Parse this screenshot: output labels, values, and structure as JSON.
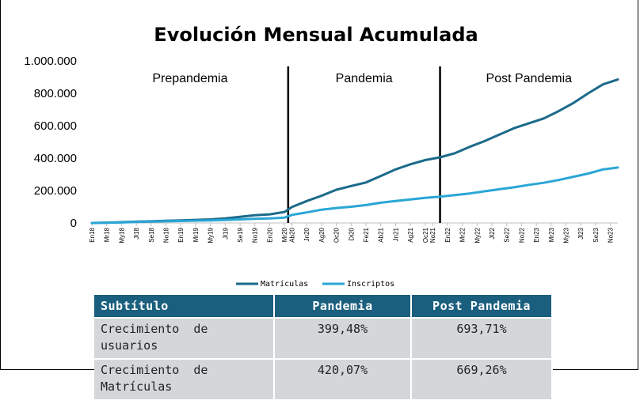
{
  "chart_data": {
    "type": "line",
    "title": "Evolución Mensual Acumulada",
    "xlabel": "",
    "ylabel": "",
    "ylim": [
      0,
      1000000
    ],
    "yticks": [
      "0",
      "200.000",
      "400.000",
      "600.000",
      "800.000",
      "1.000.000"
    ],
    "ytick_values": [
      0,
      200000,
      400000,
      600000,
      800000,
      1000000
    ],
    "x_tick_labels": [
      "En18",
      "Mr18",
      "My18",
      "Jl18",
      "Se18",
      "No18",
      "En19",
      "Mr19",
      "My19",
      "Jl19",
      "Se19",
      "No19",
      "En20",
      "Mr20",
      "Ab20",
      "Jn20",
      "Ag20",
      "Oc20",
      "Di20",
      "Fe21",
      "Ab21",
      "Jn21",
      "Ag21",
      "Oc21",
      "No21",
      "En22",
      "Mr22",
      "My22",
      "Jl22",
      "Se22",
      "No22",
      "En23",
      "Mr23",
      "My23",
      "Jl23",
      "Se23",
      "No23"
    ],
    "x_tick_months": [
      0,
      2,
      4,
      6,
      8,
      10,
      12,
      14,
      16,
      18,
      20,
      22,
      24,
      26,
      27,
      29,
      31,
      33,
      35,
      37,
      39,
      41,
      43,
      45,
      46,
      48,
      50,
      52,
      54,
      56,
      58,
      60,
      62,
      64,
      66,
      68,
      70
    ],
    "phases": [
      {
        "label": "Prepandemia",
        "start_month": 0,
        "end_month": 26.5
      },
      {
        "label": "Pandemia",
        "start_month": 26.5,
        "end_month": 47
      },
      {
        "label": "Post Pandemia",
        "start_month": 47,
        "end_month": 71
      }
    ],
    "dividers_month": [
      26.5,
      47
    ],
    "series": [
      {
        "name": "Matrículas",
        "color": "#1b6a8a",
        "points": [
          [
            0,
            0
          ],
          [
            2,
            2000
          ],
          [
            4,
            5000
          ],
          [
            6,
            8000
          ],
          [
            8,
            10000
          ],
          [
            10,
            13000
          ],
          [
            12,
            16000
          ],
          [
            14,
            19000
          ],
          [
            16,
            22000
          ],
          [
            18,
            28000
          ],
          [
            20,
            38000
          ],
          [
            22,
            48000
          ],
          [
            24,
            53000
          ],
          [
            26,
            68000
          ],
          [
            27,
            98000
          ],
          [
            29,
            135000
          ],
          [
            31,
            168000
          ],
          [
            33,
            205000
          ],
          [
            35,
            228000
          ],
          [
            37,
            250000
          ],
          [
            39,
            290000
          ],
          [
            41,
            330000
          ],
          [
            43,
            362000
          ],
          [
            45,
            388000
          ],
          [
            47,
            405000
          ],
          [
            49,
            430000
          ],
          [
            51,
            470000
          ],
          [
            53,
            505000
          ],
          [
            55,
            545000
          ],
          [
            57,
            585000
          ],
          [
            59,
            615000
          ],
          [
            61,
            645000
          ],
          [
            63,
            690000
          ],
          [
            65,
            740000
          ],
          [
            67,
            800000
          ],
          [
            69,
            855000
          ],
          [
            71,
            885000
          ]
        ]
      },
      {
        "name": "Inscriptos",
        "color": "#2aa6d6",
        "points": [
          [
            0,
            0
          ],
          [
            2,
            1000
          ],
          [
            4,
            3000
          ],
          [
            6,
            6000
          ],
          [
            8,
            8000
          ],
          [
            10,
            10000
          ],
          [
            12,
            12000
          ],
          [
            14,
            14000
          ],
          [
            16,
            16000
          ],
          [
            18,
            18000
          ],
          [
            20,
            22000
          ],
          [
            22,
            26000
          ],
          [
            24,
            28000
          ],
          [
            26,
            33000
          ],
          [
            27,
            50000
          ],
          [
            29,
            65000
          ],
          [
            31,
            82000
          ],
          [
            33,
            92000
          ],
          [
            35,
            100000
          ],
          [
            37,
            110000
          ],
          [
            39,
            125000
          ],
          [
            41,
            135000
          ],
          [
            43,
            145000
          ],
          [
            45,
            155000
          ],
          [
            47,
            162000
          ],
          [
            49,
            172000
          ],
          [
            51,
            182000
          ],
          [
            53,
            195000
          ],
          [
            55,
            208000
          ],
          [
            57,
            220000
          ],
          [
            59,
            235000
          ],
          [
            61,
            248000
          ],
          [
            63,
            265000
          ],
          [
            65,
            285000
          ],
          [
            67,
            305000
          ],
          [
            69,
            330000
          ],
          [
            71,
            342000
          ]
        ]
      }
    ],
    "legend_position": "bottom-center",
    "grid": false
  },
  "table": {
    "headers": [
      "Subtítulo",
      "Pandemia",
      "Post Pandemia"
    ],
    "rows": [
      {
        "label_line1": "Crecimiento  de",
        "label_line2": "usuarios",
        "pandemia": "399,48%",
        "post": "693,71%"
      },
      {
        "label_line1": "Crecimiento  de",
        "label_line2": "Matrículas",
        "pandemia": "420,07%",
        "post": "669,26%"
      }
    ]
  }
}
